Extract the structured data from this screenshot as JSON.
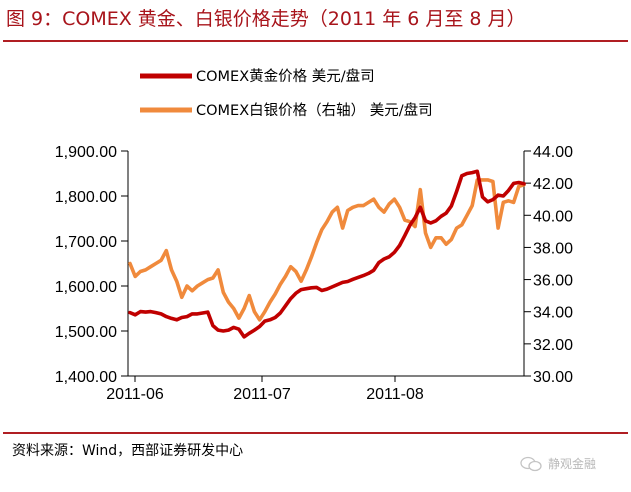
{
  "header": {
    "title": "图 9：COMEX 黄金、白银价格走势（2011 年 6 月至 8 月）"
  },
  "footer": {
    "source": "资料来源：Wind，西部证券研发中心",
    "watermark": "静观金融"
  },
  "colors": {
    "gold": "#C00000",
    "silver": "#F08A3C",
    "accent": "#B01E23"
  },
  "chart_data": {
    "type": "line",
    "title": "图 9：COMEX 黄金、白银价格走势（2011 年 6 月至 8 月）",
    "x_tick_labels": [
      "2011-06",
      "2011-07",
      "2011-08"
    ],
    "y_left": {
      "ticks": [
        "1,400.00",
        "1,500.00",
        "1,600.00",
        "1,700.00",
        "1,800.00",
        "1,900.00"
      ],
      "range": [
        1400,
        1900
      ]
    },
    "y_right": {
      "ticks": [
        "30.00",
        "32.00",
        "34.00",
        "36.00",
        "38.00",
        "40.00",
        "42.00",
        "44.00"
      ],
      "range": [
        30,
        44
      ]
    },
    "legend_position": "top",
    "series": [
      {
        "name": "COMEX黄金价格 美元/盘司",
        "axis": "left",
        "color": "#C00000",
        "values": [
          1541,
          1536,
          1543,
          1542,
          1543,
          1541,
          1538,
          1532,
          1528,
          1525,
          1530,
          1532,
          1538,
          1538,
          1540,
          1542,
          1512,
          1502,
          1500,
          1502,
          1508,
          1504,
          1487,
          1495,
          1502,
          1510,
          1522,
          1525,
          1530,
          1540,
          1556,
          1572,
          1584,
          1592,
          1594,
          1596,
          1597,
          1590,
          1593,
          1598,
          1603,
          1608,
          1610,
          1615,
          1619,
          1623,
          1628,
          1635,
          1652,
          1660,
          1665,
          1675,
          1690,
          1712,
          1735,
          1752,
          1775,
          1745,
          1740,
          1745,
          1755,
          1762,
          1778,
          1810,
          1845,
          1850,
          1852,
          1855,
          1798,
          1787,
          1792,
          1802,
          1800,
          1812,
          1828,
          1830,
          1827
        ]
      },
      {
        "name": "COMEX白银价格（右轴） 美元/盘司",
        "axis": "right",
        "color": "#F08A3C",
        "values": [
          37.0,
          36.2,
          36.5,
          36.6,
          36.8,
          37.0,
          37.2,
          37.8,
          36.6,
          35.9,
          34.9,
          35.6,
          35.3,
          35.6,
          35.8,
          36.0,
          36.1,
          36.6,
          35.2,
          34.6,
          34.2,
          33.6,
          34.2,
          35.0,
          34.0,
          33.5,
          34.0,
          34.6,
          35.1,
          35.7,
          36.2,
          36.8,
          36.5,
          35.9,
          36.6,
          37.4,
          38.3,
          39.1,
          39.6,
          40.2,
          40.5,
          39.2,
          40.3,
          40.5,
          40.6,
          40.6,
          40.8,
          41.0,
          40.5,
          40.2,
          40.7,
          41.0,
          40.5,
          39.7,
          39.6,
          39.3,
          41.6,
          38.9,
          38.0,
          38.6,
          38.6,
          38.2,
          38.5,
          39.2,
          39.4,
          40.0,
          40.6,
          42.2,
          42.2,
          42.2,
          42.1,
          39.2,
          40.8,
          40.9,
          40.8,
          41.8,
          41.9
        ]
      }
    ]
  }
}
